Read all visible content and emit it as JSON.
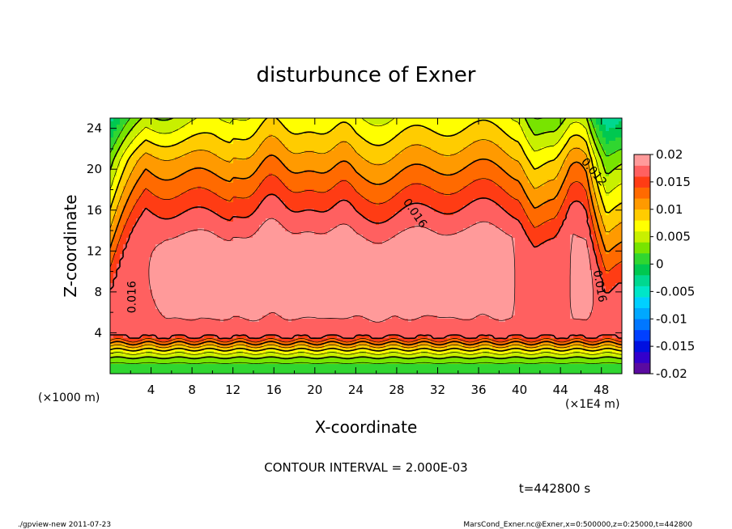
{
  "chart_data": {
    "type": "heatmap",
    "title": "disturbunce of Exner",
    "xlabel": "X-coordinate",
    "ylabel": "Z-coordinate",
    "x_unit_label": "(×1000 m)",
    "x_scale_label": "(×1E4 m)",
    "xlim": [
      0,
      50
    ],
    "ylim": [
      0,
      25
    ],
    "x_ticks": [
      "4",
      "8",
      "12",
      "16",
      "20",
      "24",
      "28",
      "32",
      "36",
      "40",
      "44",
      "48"
    ],
    "y_ticks": [
      "4",
      "8",
      "12",
      "16",
      "20",
      "24"
    ],
    "contour_interval_text": "CONTOUR INTERVAL = 2.000E-03",
    "time_text": "t=442800 s",
    "contour_labels": [
      {
        "text": "0.016",
        "x": 2.5,
        "z": 7.5
      },
      {
        "text": "0.016",
        "x": 29.5,
        "z": 15.5
      },
      {
        "text": "0.012",
        "x": 47.0,
        "z": 19.5
      },
      {
        "text": "0.016",
        "x": 47.5,
        "z": 8.5
      }
    ],
    "colorbar": {
      "labels": [
        "0.02",
        "0.015",
        "0.01",
        "0.005",
        "0",
        "-0.005",
        "-0.01",
        "-0.015",
        "-0.02"
      ],
      "levels": [
        -0.02,
        -0.018,
        -0.016,
        -0.014,
        -0.012,
        -0.01,
        -0.008,
        -0.006,
        -0.004,
        -0.002,
        0.0,
        0.002,
        0.004,
        0.006,
        0.008,
        0.01,
        0.012,
        0.014,
        0.016,
        0.018,
        0.02
      ],
      "colors": [
        "#5a0aa0",
        "#3300cc",
        "#0010e0",
        "#0040ff",
        "#0077ff",
        "#00a8ff",
        "#00d0ff",
        "#00e6c8",
        "#00d890",
        "#00c850",
        "#30d630",
        "#78e400",
        "#c8f000",
        "#ffff00",
        "#ffcc00",
        "#ff9a00",
        "#ff6a00",
        "#ff3c14",
        "#ff6060",
        "#ff9a9a"
      ]
    },
    "field_summary": "Exner disturbance highest (0.016–0.02) in a band z≈4–16 km across the domain, decreasing upward toward 0.006 near z=24 km and dropping sharply below z≈4 km to about 0.002 near the surface."
  },
  "footer": {
    "left": "./gpview-new  2011-07-23",
    "right": "MarsCond_Exner.nc@Exner,x=0:500000,z=0:25000,t=442800"
  }
}
